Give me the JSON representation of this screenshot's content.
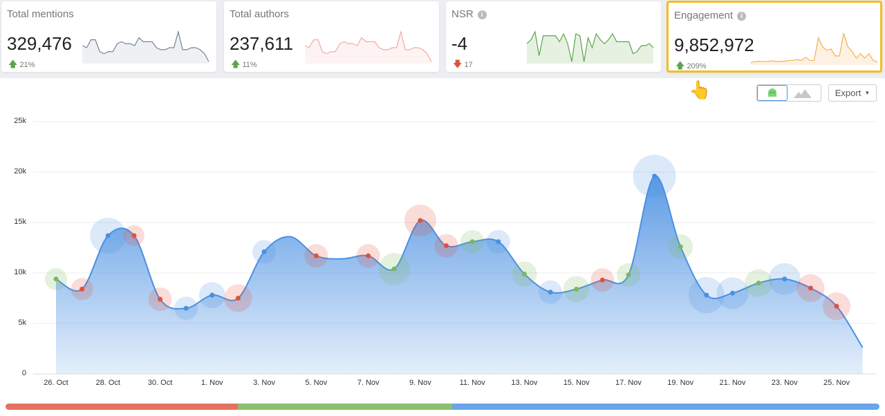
{
  "cards": [
    {
      "title": "Total mentions",
      "value": "329,476",
      "delta": "21%",
      "direction": "up",
      "color": "#7a8290",
      "fill": "#eef1f4",
      "spark": [
        9,
        8,
        12,
        12,
        6,
        5,
        6,
        6,
        10,
        11,
        10,
        10,
        9,
        13,
        11,
        11,
        11,
        8,
        7,
        7,
        8,
        8,
        16,
        7,
        7,
        8,
        8,
        7,
        5,
        1
      ]
    },
    {
      "title": "Total authors",
      "value": "237,611",
      "delta": "11%",
      "direction": "up",
      "color": "#f4a9a3",
      "fill": "#fdf3f3",
      "spark": [
        9,
        8,
        12,
        12,
        6,
        5,
        6,
        6,
        10,
        11,
        10,
        10,
        9,
        13,
        11,
        11,
        11,
        8,
        7,
        7,
        8,
        8,
        16,
        7,
        7,
        8,
        8,
        7,
        5,
        1
      ]
    },
    {
      "title": "NSR",
      "value": "-4",
      "delta": "17",
      "direction": "down",
      "color": "#5aa648",
      "fill": "#e6f1e2",
      "info": true,
      "spark": [
        10,
        12,
        16,
        4,
        14,
        14,
        14,
        14,
        11,
        15,
        10,
        1,
        15,
        14,
        1,
        13,
        8,
        15,
        12,
        10,
        12,
        15,
        11,
        11,
        11,
        11,
        5,
        6,
        9,
        9,
        10,
        8
      ]
    },
    {
      "title": "Engagement",
      "value": "9,852,972",
      "delta": "209%",
      "direction": "up",
      "color": "#f5b04a",
      "fill": "#fdf1e4",
      "info": true,
      "selected": true,
      "spark": [
        1,
        1.5,
        1.6,
        1.5,
        1.6,
        1.8,
        1.5,
        1.6,
        1.6,
        2,
        2,
        2.4,
        2,
        3.4,
        2,
        2,
        12,
        8,
        6.5,
        7,
        4,
        4,
        14,
        8,
        6,
        3,
        5,
        3,
        5,
        2,
        1.3
      ]
    }
  ],
  "toolbar": {
    "view_bubble": "bubble-chart-icon",
    "view_area": "area-chart-icon",
    "export_label": "Export"
  },
  "sentiment_colors": {
    "positive": "#7cb760",
    "negative": "#e5503a",
    "neutral": "#4a90e2"
  },
  "sentiment_bar": [
    {
      "sentiment": "negative",
      "share": 0.266,
      "color": "#e4715f"
    },
    {
      "sentiment": "positive",
      "share": 0.245,
      "color": "#8cc06d"
    },
    {
      "sentiment": "neutral",
      "share": 0.489,
      "color": "#6aa4ea"
    }
  ],
  "chart_data": {
    "type": "area",
    "yticks": [
      "0",
      "5k",
      "10k",
      "15k",
      "20k",
      "25k"
    ],
    "ylim": [
      0,
      25000
    ],
    "xticks": [
      "26. Oct",
      "28. Oct",
      "30. Oct",
      "1. Nov",
      "3. Nov",
      "5. Nov",
      "7. Nov",
      "9. Nov",
      "11. Nov",
      "13. Nov",
      "15. Nov",
      "17. Nov",
      "19. Nov",
      "21. Nov",
      "23. Nov",
      "25. Nov"
    ],
    "x": [
      "26 Oct",
      "27 Oct",
      "28 Oct",
      "29 Oct",
      "30 Oct",
      "31 Oct",
      "1 Nov",
      "2 Nov",
      "3 Nov",
      "4 Nov",
      "5 Nov",
      "6 Nov",
      "7 Nov",
      "8 Nov",
      "9 Nov",
      "10 Nov",
      "11 Nov",
      "12 Nov",
      "13 Nov",
      "14 Nov",
      "15 Nov",
      "16 Nov",
      "17 Nov",
      "18 Nov",
      "19 Nov",
      "20 Nov",
      "21 Nov",
      "22 Nov",
      "23 Nov",
      "24 Nov",
      "25 Nov",
      "26 Nov"
    ],
    "values": [
      9400,
      8400,
      13700,
      13700,
      7400,
      6500,
      7800,
      7500,
      12100,
      13600,
      11700,
      11400,
      11700,
      10400,
      15200,
      12700,
      13100,
      13100,
      9900,
      8100,
      8400,
      9300,
      9800,
      19600,
      12600,
      7800,
      8000,
      9000,
      9400,
      8500,
      6700,
      2600
    ],
    "sentiment": [
      "positive",
      "negative",
      "neutral",
      "negative",
      "negative",
      "neutral",
      "neutral",
      "negative",
      "neutral",
      null,
      "negative",
      null,
      "negative",
      "positive",
      "negative",
      "negative",
      "positive",
      "neutral",
      "positive",
      "neutral",
      "positive",
      "negative",
      "positive",
      "neutral",
      "positive",
      "neutral",
      "neutral",
      "positive",
      "neutral",
      "negative",
      "negative",
      null
    ],
    "bubble_size": [
      16,
      16,
      26,
      15,
      17,
      17,
      19,
      20,
      17,
      0,
      17,
      0,
      17,
      23,
      23,
      17,
      17,
      17,
      18,
      17,
      19,
      17,
      17,
      31,
      18,
      26,
      23,
      20,
      23,
      20,
      20,
      0
    ],
    "grid": true
  }
}
